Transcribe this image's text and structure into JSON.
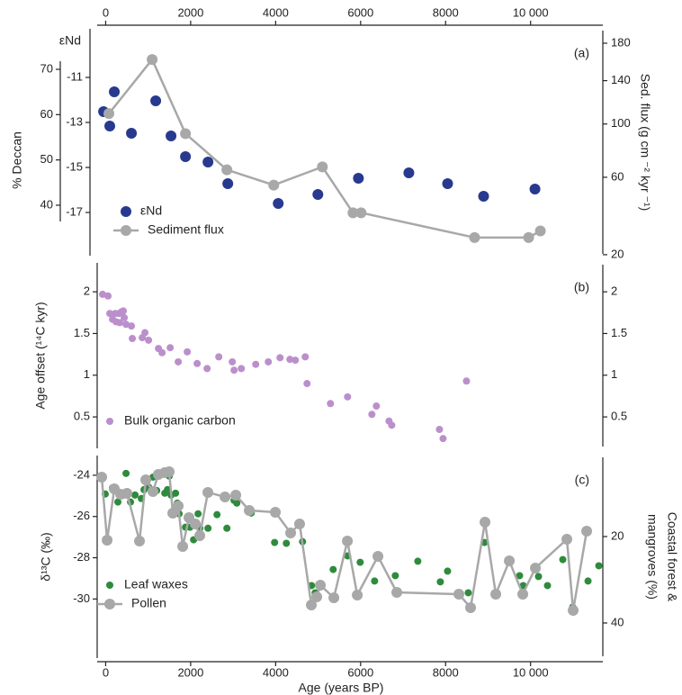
{
  "chart_data": [
    {
      "type": "scatter",
      "panel_label": "(a)",
      "xaxis": "top",
      "xlim": [
        -200,
        11700
      ],
      "xticks": [
        0,
        2000,
        4000,
        6000,
        8000,
        {
          "value": 10000,
          "label": "10 000"
        }
      ],
      "ylabel": "εNd",
      "ylim": [
        -19.08,
        -8.68
      ],
      "yticks": [
        -11,
        -13,
        -15,
        -17
      ],
      "deccan_axis": {
        "label": "% Deccan",
        "lim": [
          28.07,
          79.74
        ],
        "ticks": [
          40,
          50,
          60,
          70
        ]
      },
      "y2label": "Sed. flux (g cm ⁻² kyr ⁻¹)",
      "y2lim": [
        18.3,
        201
      ],
      "y2scale": "sqrt",
      "y2ticks": [
        20,
        60,
        100,
        140,
        180
      ],
      "legend": "lower left",
      "series": [
        {
          "name": "εNd",
          "color": "#283a8f",
          "line": false,
          "marker_size": 6,
          "x": [
            -50,
            203,
            97,
            606,
            1178,
            1538,
            1878,
            2408,
            2874,
            4061,
            4994,
            5948,
            7135,
            8047,
            8894,
            10103
          ],
          "values": [
            -12.52,
            -11.64,
            -13.16,
            -13.48,
            -12.04,
            -13.6,
            -14.52,
            -14.76,
            -15.72,
            -16.6,
            -16.2,
            -15.48,
            -15.24,
            -15.72,
            -16.28,
            -15.96
          ]
        },
        {
          "name": "Sediment flux",
          "color": "#a8a8a8",
          "line": true,
          "axis": "y2",
          "marker_size": 6,
          "x": [
            76,
            1094,
            1878,
            2853,
            3955,
            5100,
            5820,
            6011,
            8682,
            9954,
            10230
          ],
          "values": [
            109,
            162,
            92,
            65,
            55,
            67,
            39,
            39,
            27,
            27,
            30
          ]
        }
      ]
    },
    {
      "type": "scatter",
      "panel_label": "(b)",
      "xlim": [
        -200,
        11700
      ],
      "ylabel": "Age offset (¹⁴C kyr)",
      "ylim": [
        0.08,
        2.39
      ],
      "yticks": [
        2.0,
        1.5,
        1.0,
        0.5
      ],
      "y2lim": [
        0.08,
        2.39
      ],
      "y2ticks": [
        2.0,
        1.5,
        1.0,
        0.5
      ],
      "legend": "lower left",
      "series": [
        {
          "name": "Bulk organic carbon",
          "color": "#bb8fcc",
          "line": false,
          "marker_size": 4,
          "x": [
            -72,
            55,
            97,
            225,
            161,
            309,
            373,
            437,
            246,
            479,
            606,
            627,
            331,
            415,
            924,
            861,
            1009,
            1242,
            1327,
            1518,
            1708,
            1920,
            2153,
            2387,
            2662,
            2980,
            3022,
            3192,
            3531,
            3828,
            4103,
            4336,
            4464,
            4697,
            4739,
            5290,
            5693,
            6265,
            6371,
            6732,
            6668,
            7855,
            7940,
            8491
          ],
          "values": [
            1.97,
            1.95,
            1.74,
            1.74,
            1.67,
            1.74,
            1.76,
            1.69,
            1.64,
            1.61,
            1.59,
            1.44,
            1.63,
            1.77,
            1.51,
            1.45,
            1.42,
            1.32,
            1.27,
            1.33,
            1.16,
            1.28,
            1.14,
            1.08,
            1.22,
            1.16,
            1.06,
            1.08,
            1.13,
            1.16,
            1.21,
            1.19,
            1.18,
            1.22,
            0.9,
            0.66,
            0.74,
            0.53,
            0.63,
            0.4,
            0.45,
            0.35,
            0.24,
            0.93
          ]
        }
      ]
    },
    {
      "type": "scatter",
      "panel_label": "(c)",
      "xaxis": "bottom",
      "xlabel": "Age (years BP)",
      "xlim": [
        -200,
        11700
      ],
      "xticks": [
        0,
        2000,
        4000,
        6000,
        8000,
        {
          "value": 10000,
          "label": "10 000"
        }
      ],
      "ylabel": "δ¹³C (‰)",
      "ylim": [
        -33.04,
        -22.87
      ],
      "yticks": [
        -24,
        -26,
        -28,
        -30
      ],
      "y2label": [
        "Coastal forest &",
        "mangroves (%)"
      ],
      "y2lim": [
        48.96,
        0.42
      ],
      "y2ticks": [
        20,
        40
      ],
      "legend": "lower left",
      "series": [
        {
          "name": "Leaf waxes",
          "color": "#2e8b3c",
          "line": false,
          "marker_size": 4,
          "x": [
            -10,
            161,
            288,
            415,
            479,
            585,
            691,
            839,
            903,
            1009,
            1115,
            1200,
            1327,
            1391,
            1454,
            1496,
            1539,
            1645,
            1687,
            1729,
            1878,
            1984,
            2069,
            2175,
            2217,
            2408,
            2620,
            2853,
            3022,
            3086,
            3425,
            3976,
            4252,
            4548,
            4633,
            4845,
            4930,
            5354,
            5693,
            5990,
            6329,
            6816,
            7346,
            7876,
            8046,
            8533,
            8915,
            9741,
            9826,
            10186,
            10398,
            10758,
            10992,
            11352,
            11606
          ],
          "values": [
            -24.91,
            -24.61,
            -25.3,
            -24.96,
            -23.91,
            -25.3,
            -24.96,
            -25.13,
            -24.7,
            -24.57,
            -24.09,
            -24.74,
            -23.91,
            -24.87,
            -24.7,
            -24.04,
            -24.96,
            -24.87,
            -25.35,
            -25.87,
            -26.52,
            -26.52,
            -27.13,
            -25.87,
            -26.57,
            -26.57,
            -25.91,
            -26.57,
            -25.22,
            -25.35,
            -25.83,
            -27.26,
            -27.3,
            -26.35,
            -27.22,
            -29.35,
            -29.7,
            -28.57,
            -27.91,
            -28.22,
            -29.13,
            -28.87,
            -28.17,
            -29.17,
            -28.65,
            -29.7,
            -27.26,
            -28.87,
            -29.35,
            -28.91,
            -29.35,
            -28.09,
            -30.39,
            -29.13,
            -28.39
          ]
        },
        {
          "name": "Pollen",
          "color": "#a8a8a8",
          "line": true,
          "axis": "y2",
          "marker_size": 6,
          "x": [
            -93,
            34,
            203,
            351,
            500,
            796,
            944,
            1113,
            1240,
            1389,
            1495,
            1580,
            1707,
            1813,
            1961,
            2109,
            2215,
            2405,
            2808,
            3062,
            3379,
            3993,
            4353,
            4564,
            4840,
            4967,
            5052,
            5370,
            5688,
            5921,
            6408,
            6852,
            8313,
            8588,
            8927,
            9181,
            9499,
            9816,
            10113,
            10854,
            11002,
            11320
          ],
          "values": [
            6.25,
            20.83,
            8.96,
            10.21,
            10.0,
            21.04,
            6.88,
            9.58,
            5.63,
            5.21,
            5.0,
            14.58,
            12.92,
            22.29,
            15.63,
            17.08,
            19.79,
            9.79,
            10.83,
            10.42,
            13.96,
            14.38,
            19.17,
            17.08,
            35.83,
            33.96,
            31.25,
            34.17,
            21.04,
            33.54,
            24.58,
            32.92,
            33.33,
            36.46,
            16.67,
            33.33,
            25.63,
            33.33,
            27.29,
            20.63,
            37.08,
            18.75
          ]
        }
      ]
    }
  ]
}
